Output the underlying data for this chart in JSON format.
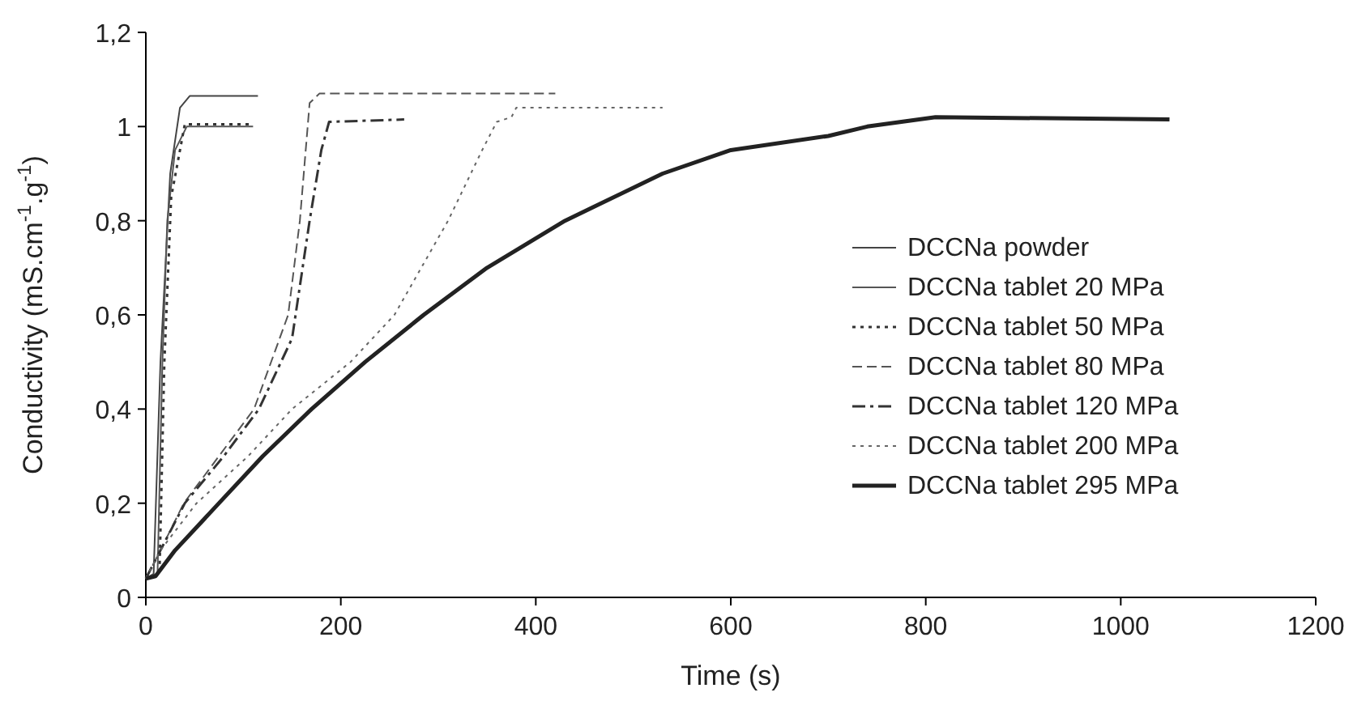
{
  "chart_data": {
    "type": "line",
    "xlabel": "Time (s)",
    "ylabel": "Conductivity (mS.cm$^{-1}$.g$^{-1}$)",
    "xlim": [
      0,
      1200
    ],
    "xticks": [
      0,
      200,
      400,
      600,
      800,
      1000,
      1200
    ],
    "ylim": [
      0,
      1.2
    ],
    "yticks": [
      0,
      {
        "value": 0.2,
        "label": "0,2"
      },
      {
        "value": 0.4,
        "label": "0,4"
      },
      {
        "value": 0.6,
        "label": "0,6"
      },
      {
        "value": 0.8,
        "label": "0,8"
      },
      1,
      {
        "value": 1.2,
        "label": "1,2"
      }
    ],
    "grid": false,
    "legend": "right",
    "series": [
      {
        "name": "DCCNa powder",
        "color": "#444444",
        "line_style": "solid",
        "x": [
          0,
          8,
          15,
          25,
          35,
          45,
          115
        ],
        "values": [
          0.04,
          0.05,
          0.5,
          0.9,
          1.04,
          1.065,
          1.065
        ]
      },
      {
        "name": "DCCNa tablet 20 MPa",
        "color": "#555555",
        "line_style": "solid",
        "x": [
          0,
          12,
          17,
          22,
          30,
          42,
          110
        ],
        "values": [
          0.04,
          0.05,
          0.5,
          0.8,
          0.95,
          1.0,
          1.0
        ]
      },
      {
        "name": "DCCNa tablet 50 MPa",
        "color": "#333333",
        "line_style": "dotted",
        "x": [
          0,
          14,
          19,
          26,
          40,
          110
        ],
        "values": [
          0.04,
          0.05,
          0.5,
          0.85,
          1.005,
          1.005
        ]
      },
      {
        "name": "DCCNa tablet 80 MPa",
        "color": "#555555",
        "line_style": "dashed",
        "x": [
          0,
          15,
          39,
          75,
          111,
          146,
          158,
          168,
          178,
          420
        ],
        "values": [
          0.04,
          0.1,
          0.2,
          0.3,
          0.4,
          0.6,
          0.8,
          1.05,
          1.07,
          1.07
        ]
      },
      {
        "name": "DCCNa tablet 120 MPa",
        "color": "#333333",
        "line_style": "dashdot",
        "x": [
          0,
          15,
          40,
          80,
          116,
          150,
          168,
          180,
          188,
          265
        ],
        "values": [
          0.04,
          0.1,
          0.2,
          0.3,
          0.4,
          0.55,
          0.8,
          0.95,
          1.01,
          1.015
        ]
      },
      {
        "name": "DCCNa tablet 200 MPa",
        "color": "#666666",
        "line_style": "dotted",
        "x": [
          0,
          15,
          52,
          105,
          150,
          210,
          255,
          310,
          345,
          360,
          375,
          380,
          530
        ],
        "values": [
          0.04,
          0.1,
          0.2,
          0.3,
          0.4,
          0.5,
          0.6,
          0.8,
          0.95,
          1.01,
          1.02,
          1.04,
          1.04
        ]
      },
      {
        "name": "DCCNa tablet 295 MPa",
        "color": "#222222",
        "line_style": "solid",
        "x": [
          0,
          10,
          30,
          75,
          120,
          170,
          225,
          285,
          350,
          430,
          530,
          600,
          700,
          740,
          810,
          1050
        ],
        "values": [
          0.04,
          0.045,
          0.1,
          0.2,
          0.3,
          0.4,
          0.5,
          0.6,
          0.7,
          0.8,
          0.9,
          0.95,
          0.98,
          1.0,
          1.02,
          1.015
        ]
      }
    ]
  }
}
